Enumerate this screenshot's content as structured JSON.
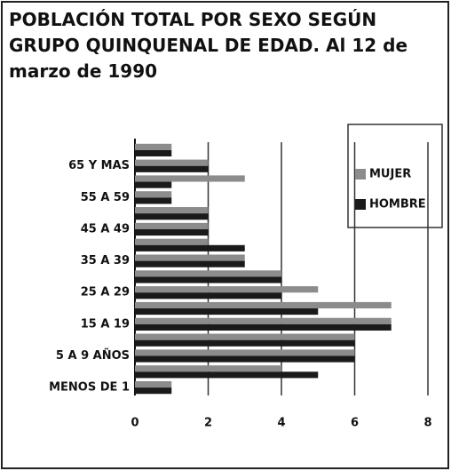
{
  "chart_data": {
    "type": "bar",
    "orientation": "horizontal",
    "title": "POBLACIÓN TOTAL POR SEXO SEGÚN GRUPO QUINQUENAL DE EDAD.  Al 12 de marzo de 1990",
    "categories": [
      "MENOS DE 1",
      null,
      "5 A 9 AÑOS",
      null,
      "15 A 19",
      null,
      "25 A 29",
      null,
      "35 A 39",
      null,
      "45 A 49",
      null,
      "55 A 59",
      null,
      "65 Y MAS",
      null
    ],
    "series": [
      {
        "name": "MUJER",
        "color": "#8c8c8c",
        "values": [
          1,
          4,
          6,
          6,
          7,
          7,
          5,
          4,
          3,
          2,
          2,
          2,
          1,
          3,
          2,
          1
        ]
      },
      {
        "name": "HOMBRE",
        "color": "#1a1a1a",
        "values": [
          1,
          5,
          6,
          6,
          7,
          5,
          4,
          4,
          3,
          3,
          2,
          2,
          1,
          1,
          2,
          1
        ]
      }
    ],
    "xlim": [
      0,
      8
    ],
    "xticks": [
      0,
      2,
      4,
      6,
      8
    ],
    "grid": true,
    "legend": "top-right"
  }
}
